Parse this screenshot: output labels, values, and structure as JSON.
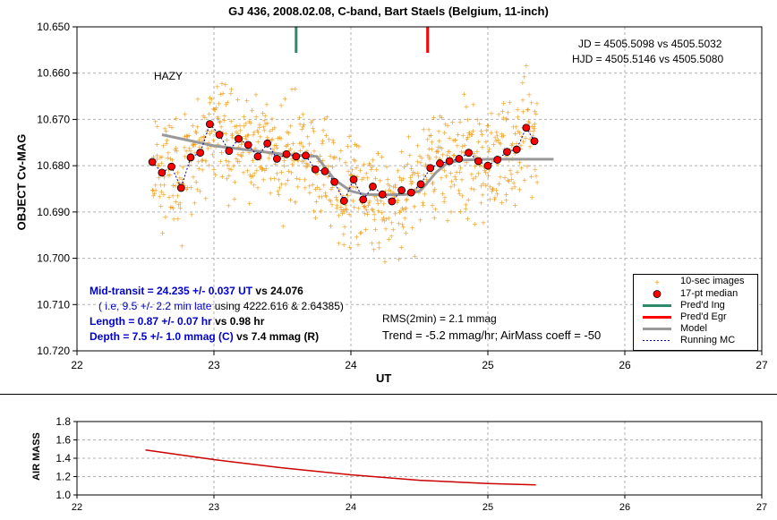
{
  "chart_data": [
    {
      "type": "scatter",
      "title": "GJ 436, 2008.02.08, C-band, Bart Staels (Belgium, 11-inch)",
      "xlabel": "UT",
      "ylabel": "OBJECT Cv-MAG",
      "xlim": [
        22,
        27
      ],
      "ylim": [
        10.65,
        10.72
      ],
      "y_inverted": true,
      "grid": true,
      "x_ticks": [
        "22",
        "23",
        "24",
        "25",
        "26",
        "27"
      ],
      "y_ticks": [
        "10.650",
        "10.660",
        "10.670",
        "10.680",
        "10.690",
        "10.700",
        "10.710",
        "10.720"
      ],
      "legend_position": "bottom-right",
      "legend": [
        "10-sec images",
        "17-pt median",
        "Pred'd Ing",
        "Pred'd Egr",
        "Model",
        "Running MC"
      ],
      "colors": {
        "images": "#f0a020",
        "median": "#ff0000",
        "ingress": "#2e8b6a",
        "egress": "#ff0000",
        "model": "#999999",
        "running": "#000099"
      },
      "predicted_ingress_ut": 23.6,
      "predicted_egress_ut": 24.56,
      "median_points": {
        "x": [
          22.55,
          22.62,
          22.69,
          22.76,
          22.83,
          22.9,
          22.97,
          23.04,
          23.11,
          23.18,
          23.25,
          23.32,
          23.39,
          23.46,
          23.53,
          23.6,
          23.67,
          23.74,
          23.81,
          23.88,
          23.95,
          24.02,
          24.09,
          24.16,
          24.23,
          24.3,
          24.37,
          24.44,
          24.51,
          24.58,
          24.65,
          24.72,
          24.79,
          24.86,
          24.93,
          25.0,
          25.07,
          25.14,
          25.21,
          25.28,
          25.34
        ],
        "y": [
          10.6792,
          10.6815,
          10.6802,
          10.6848,
          10.6782,
          10.6772,
          10.671,
          10.6733,
          10.6768,
          10.6742,
          10.6755,
          10.678,
          10.6752,
          10.6785,
          10.6775,
          10.678,
          10.6778,
          10.6808,
          10.6812,
          10.6835,
          10.6876,
          10.683,
          10.6873,
          10.6845,
          10.6862,
          10.6877,
          10.6853,
          10.6858,
          10.684,
          10.6805,
          10.6795,
          10.679,
          10.6785,
          10.6772,
          10.679,
          10.68,
          10.6787,
          10.677,
          10.6765,
          10.6718,
          10.6747
        ]
      },
      "model": {
        "x": [
          22.62,
          23.0,
          23.5,
          23.75,
          23.88,
          24.0,
          24.1,
          24.25,
          24.4,
          24.5,
          24.55,
          24.62,
          24.7,
          24.8,
          25.0,
          25.25,
          25.48
        ],
        "y": [
          10.6733,
          10.6757,
          10.6775,
          10.678,
          10.683,
          10.6855,
          10.6862,
          10.6863,
          10.6862,
          10.6855,
          10.684,
          10.6815,
          10.6795,
          10.6788,
          10.6786,
          10.6786,
          10.6786
        ]
      },
      "scatter_note_images": "10-sec images scatter around the median curve with ~0.006 mag dispersion",
      "annotations": {
        "hazy": "HAZY",
        "jd": "JD = 4505.5098 vs 4505.5032",
        "hjd": "HJD = 4505.5146 vs 4505.5080",
        "mid_transit": "Mid-transit = 24.235 +/- 0.037 UT",
        "mid_transit_vs": "vs 24.076",
        "late": "( i.e, 9.5 +/- 2.2 min late",
        "late_using": "using 4222.616 & 2.64385)",
        "length": "Length = 0.87 +/- 0.07 hr",
        "length_vs": "vs 0.98 hr",
        "depth": "Depth = 7.5 +/- 1.0 mmag (C)",
        "depth_vs": "vs 7.4  mmag (R)",
        "rms": "RMS(2min) = 2.1 mmag",
        "trend": "Trend = -5.2 mmag/hr; AirMass coeff = -50"
      }
    },
    {
      "type": "line",
      "ylabel": "AIR MASS",
      "xlim": [
        22,
        27
      ],
      "ylim": [
        1.0,
        1.8
      ],
      "grid": true,
      "x_ticks": [
        "22",
        "23",
        "24",
        "25",
        "26",
        "27"
      ],
      "y_ticks": [
        "1.0",
        "1.2",
        "1.4",
        "1.6",
        "1.8"
      ],
      "color": "#cc0000",
      "x": [
        22.5,
        23.0,
        23.5,
        24.0,
        24.5,
        25.0,
        25.35
      ],
      "y": [
        1.49,
        1.385,
        1.295,
        1.22,
        1.16,
        1.125,
        1.11
      ]
    }
  ]
}
